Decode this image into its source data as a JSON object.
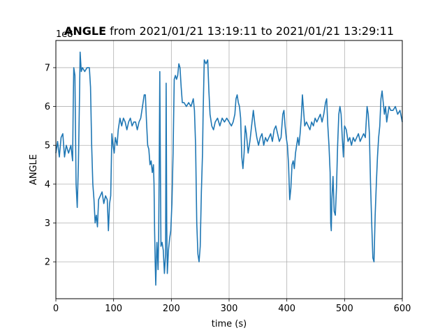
{
  "chart_data": {
    "type": "line",
    "title_bold": "ANGLE",
    "title_rest": " from 2021/01/21 13:19:11 to 2021/01/21 13:29:11",
    "xlabel": "time (s)",
    "ylabel": "ANGLE",
    "y_offset_text": "1e8",
    "xlim": [
      0,
      600
    ],
    "ylim": [
      1.05,
      7.7
    ],
    "x_ticks": [
      0,
      100,
      200,
      300,
      400,
      500,
      600
    ],
    "y_ticks": [
      2,
      3,
      4,
      5,
      6,
      7
    ],
    "grid": true,
    "colors": {
      "line": "#1f77b4",
      "grid": "#b0b0b0"
    },
    "series": [
      {
        "points": [
          [
            0,
            4.8
          ],
          [
            3,
            5.1
          ],
          [
            6,
            4.7
          ],
          [
            9,
            5.2
          ],
          [
            12,
            5.3
          ],
          [
            15,
            4.7
          ],
          [
            18,
            5.0
          ],
          [
            22,
            4.8
          ],
          [
            26,
            5.0
          ],
          [
            29,
            4.6
          ],
          [
            30,
            6.0
          ],
          [
            31,
            7.0
          ],
          [
            33,
            6.8
          ],
          [
            35,
            4.0
          ],
          [
            37,
            3.4
          ],
          [
            39,
            4.5
          ],
          [
            41,
            6.3
          ],
          [
            42,
            7.4
          ],
          [
            44,
            6.9
          ],
          [
            46,
            7.0
          ],
          [
            50,
            6.9
          ],
          [
            54,
            7.0
          ],
          [
            58,
            7.0
          ],
          [
            60,
            6.5
          ],
          [
            62,
            5.0
          ],
          [
            64,
            4.0
          ],
          [
            66,
            3.6
          ],
          [
            68,
            3.0
          ],
          [
            70,
            3.2
          ],
          [
            72,
            2.9
          ],
          [
            74,
            3.6
          ],
          [
            77,
            3.7
          ],
          [
            80,
            3.8
          ],
          [
            83,
            3.5
          ],
          [
            86,
            3.7
          ],
          [
            89,
            3.6
          ],
          [
            91,
            2.8
          ],
          [
            93,
            3.5
          ],
          [
            95,
            3.7
          ],
          [
            97,
            5.3
          ],
          [
            99,
            5.0
          ],
          [
            101,
            4.8
          ],
          [
            103,
            5.2
          ],
          [
            106,
            5.0
          ],
          [
            108,
            5.4
          ],
          [
            111,
            5.7
          ],
          [
            114,
            5.5
          ],
          [
            117,
            5.7
          ],
          [
            120,
            5.6
          ],
          [
            123,
            5.4
          ],
          [
            126,
            5.6
          ],
          [
            129,
            5.7
          ],
          [
            132,
            5.5
          ],
          [
            135,
            5.6
          ],
          [
            138,
            5.6
          ],
          [
            141,
            5.4
          ],
          [
            144,
            5.6
          ],
          [
            147,
            5.7
          ],
          [
            150,
            6.0
          ],
          [
            153,
            6.3
          ],
          [
            155,
            6.3
          ],
          [
            157,
            5.6
          ],
          [
            159,
            5.0
          ],
          [
            161,
            4.9
          ],
          [
            163,
            4.5
          ],
          [
            165,
            4.6
          ],
          [
            167,
            4.3
          ],
          [
            169,
            4.5
          ],
          [
            170,
            4.0
          ],
          [
            171,
            2.8
          ],
          [
            172,
            2.0
          ],
          [
            173,
            1.4
          ],
          [
            174,
            2.0
          ],
          [
            175,
            2.5
          ],
          [
            176,
            2.2
          ],
          [
            177,
            1.8
          ],
          [
            178,
            2.6
          ],
          [
            179,
            4.5
          ],
          [
            180,
            6.9
          ],
          [
            181,
            4.5
          ],
          [
            182,
            2.4
          ],
          [
            184,
            2.5
          ],
          [
            186,
            2.3
          ],
          [
            188,
            1.7
          ],
          [
            190,
            2.2
          ],
          [
            191,
            6.6
          ],
          [
            192,
            3.0
          ],
          [
            193,
            1.7
          ],
          [
            195,
            2.3
          ],
          [
            197,
            2.6
          ],
          [
            199,
            2.8
          ],
          [
            201,
            3.5
          ],
          [
            203,
            4.8
          ],
          [
            205,
            6.7
          ],
          [
            207,
            6.8
          ],
          [
            209,
            6.7
          ],
          [
            211,
            6.8
          ],
          [
            213,
            7.1
          ],
          [
            215,
            7.0
          ],
          [
            217,
            6.5
          ],
          [
            219,
            6.1
          ],
          [
            222,
            6.1
          ],
          [
            226,
            6.0
          ],
          [
            230,
            6.1
          ],
          [
            234,
            6.0
          ],
          [
            238,
            6.2
          ],
          [
            240,
            5.9
          ],
          [
            242,
            5.0
          ],
          [
            244,
            3.0
          ],
          [
            246,
            2.2
          ],
          [
            248,
            2.0
          ],
          [
            250,
            2.4
          ],
          [
            252,
            3.8
          ],
          [
            254,
            4.8
          ],
          [
            255,
            5.8
          ],
          [
            257,
            7.2
          ],
          [
            260,
            7.1
          ],
          [
            263,
            7.2
          ],
          [
            265,
            6.4
          ],
          [
            267,
            5.8
          ],
          [
            270,
            5.5
          ],
          [
            273,
            5.4
          ],
          [
            276,
            5.6
          ],
          [
            280,
            5.7
          ],
          [
            284,
            5.5
          ],
          [
            288,
            5.7
          ],
          [
            292,
            5.6
          ],
          [
            296,
            5.7
          ],
          [
            300,
            5.6
          ],
          [
            304,
            5.5
          ],
          [
            307,
            5.6
          ],
          [
            310,
            5.8
          ],
          [
            312,
            6.2
          ],
          [
            314,
            6.3
          ],
          [
            316,
            6.1
          ],
          [
            318,
            6.0
          ],
          [
            320,
            5.7
          ],
          [
            322,
            4.7
          ],
          [
            324,
            4.4
          ],
          [
            326,
            4.8
          ],
          [
            328,
            5.5
          ],
          [
            330,
            5.3
          ],
          [
            333,
            4.8
          ],
          [
            336,
            5.1
          ],
          [
            339,
            5.5
          ],
          [
            342,
            5.9
          ],
          [
            345,
            5.5
          ],
          [
            348,
            5.2
          ],
          [
            351,
            5.0
          ],
          [
            354,
            5.2
          ],
          [
            357,
            5.3
          ],
          [
            360,
            5.0
          ],
          [
            363,
            5.2
          ],
          [
            366,
            5.1
          ],
          [
            369,
            5.2
          ],
          [
            372,
            5.3
          ],
          [
            375,
            5.1
          ],
          [
            378,
            5.4
          ],
          [
            381,
            5.5
          ],
          [
            384,
            5.3
          ],
          [
            387,
            5.1
          ],
          [
            390,
            5.2
          ],
          [
            393,
            5.8
          ],
          [
            395,
            5.9
          ],
          [
            397,
            5.5
          ],
          [
            399,
            5.2
          ],
          [
            401,
            5.0
          ],
          [
            403,
            4.5
          ],
          [
            405,
            3.6
          ],
          [
            407,
            3.9
          ],
          [
            409,
            4.5
          ],
          [
            411,
            4.6
          ],
          [
            413,
            4.4
          ],
          [
            415,
            4.8
          ],
          [
            417,
            5.0
          ],
          [
            419,
            5.2
          ],
          [
            421,
            5.0
          ],
          [
            423,
            5.3
          ],
          [
            425,
            5.7
          ],
          [
            427,
            6.3
          ],
          [
            429,
            5.9
          ],
          [
            431,
            5.5
          ],
          [
            434,
            5.6
          ],
          [
            437,
            5.5
          ],
          [
            440,
            5.4
          ],
          [
            443,
            5.6
          ],
          [
            446,
            5.5
          ],
          [
            449,
            5.7
          ],
          [
            452,
            5.6
          ],
          [
            455,
            5.7
          ],
          [
            458,
            5.8
          ],
          [
            461,
            5.6
          ],
          [
            464,
            5.8
          ],
          [
            467,
            6.1
          ],
          [
            469,
            6.2
          ],
          [
            471,
            5.5
          ],
          [
            473,
            5.0
          ],
          [
            475,
            4.3
          ],
          [
            476,
            3.0
          ],
          [
            477,
            2.8
          ],
          [
            478,
            3.6
          ],
          [
            480,
            4.2
          ],
          [
            482,
            3.3
          ],
          [
            484,
            3.2
          ],
          [
            486,
            3.9
          ],
          [
            488,
            5.0
          ],
          [
            490,
            5.8
          ],
          [
            492,
            6.0
          ],
          [
            494,
            5.8
          ],
          [
            496,
            5.2
          ],
          [
            498,
            4.7
          ],
          [
            500,
            5.5
          ],
          [
            503,
            5.4
          ],
          [
            506,
            5.1
          ],
          [
            509,
            5.2
          ],
          [
            512,
            5.0
          ],
          [
            515,
            5.2
          ],
          [
            518,
            5.1
          ],
          [
            521,
            5.2
          ],
          [
            524,
            5.3
          ],
          [
            527,
            5.1
          ],
          [
            530,
            5.2
          ],
          [
            533,
            5.3
          ],
          [
            536,
            5.2
          ],
          [
            539,
            6.0
          ],
          [
            541,
            5.8
          ],
          [
            543,
            5.3
          ],
          [
            545,
            4.0
          ],
          [
            547,
            3.0
          ],
          [
            549,
            2.1
          ],
          [
            551,
            2.0
          ],
          [
            553,
            3.2
          ],
          [
            555,
            4.0
          ],
          [
            557,
            4.7
          ],
          [
            559,
            5.2
          ],
          [
            561,
            5.5
          ],
          [
            563,
            6.2
          ],
          [
            565,
            6.4
          ],
          [
            567,
            6.1
          ],
          [
            569,
            5.8
          ],
          [
            571,
            6.0
          ],
          [
            573,
            5.6
          ],
          [
            575,
            5.8
          ],
          [
            577,
            6.0
          ],
          [
            580,
            5.9
          ],
          [
            584,
            5.9
          ],
          [
            588,
            6.0
          ],
          [
            592,
            5.8
          ],
          [
            596,
            5.9
          ],
          [
            600,
            5.6
          ]
        ]
      }
    ]
  }
}
